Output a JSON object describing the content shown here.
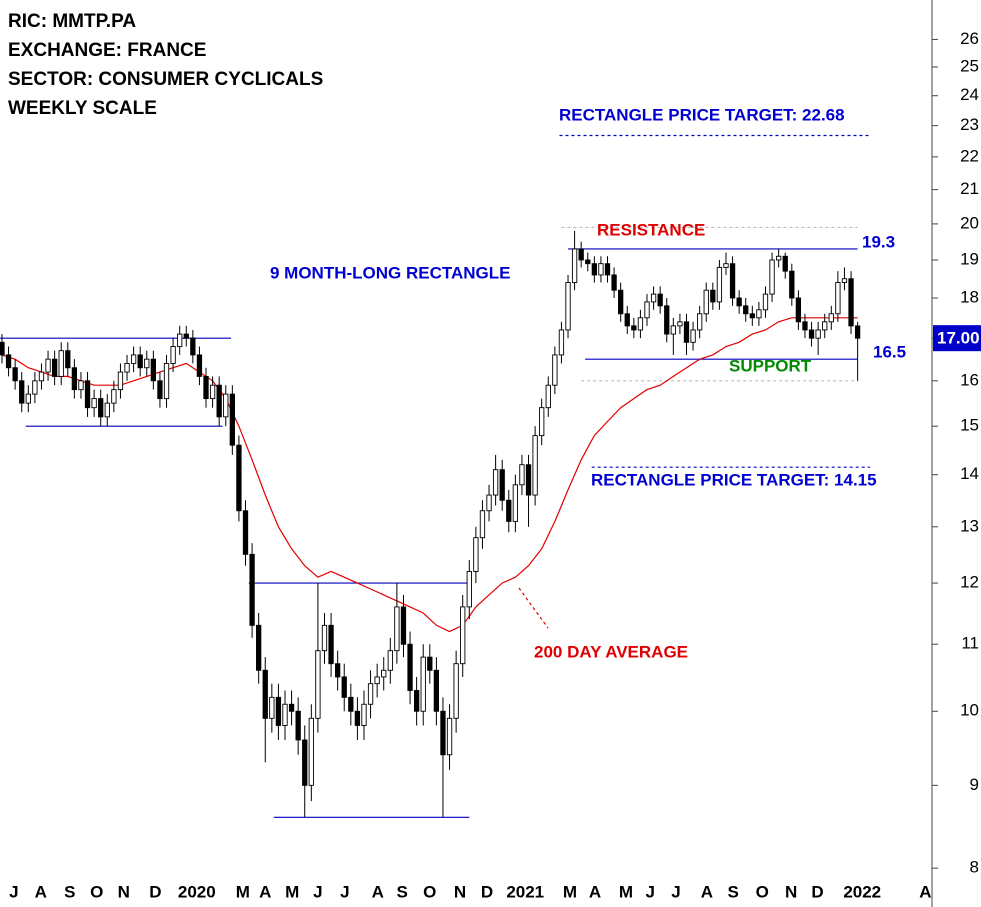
{
  "chart_data": {
    "type": "candlestick",
    "header": [
      "RIC: MMTP.PA",
      "EXCHANGE: FRANCE",
      "SECTOR: CONSUMER CYCLICALS",
      "WEEKLY SCALE"
    ],
    "annotations": {
      "rectangle": "9 MONTH-LONG RECTANGLE",
      "resistance": "RESISTANCE",
      "support": "SUPPORT",
      "target_up": "RECTANGLE PRICE TARGET: 22.68",
      "target_down": "RECTANGLE PRICE TARGET: 14.15"
    },
    "log_scale": true,
    "up_color": "#ffffff",
    "down_color": "#000000",
    "xlim": [
      -0.3,
      141.3
    ],
    "xticks": [
      {
        "value": 1.8,
        "label": "J"
      },
      {
        "value": 5.9,
        "label": "A"
      },
      {
        "value": 10.3,
        "label": "S"
      },
      {
        "value": 14.4,
        "label": "O"
      },
      {
        "value": 18.5,
        "label": "N"
      },
      {
        "value": 23.3,
        "label": "D"
      },
      {
        "value": 29.6,
        "label": "2020"
      },
      {
        "value": 36.6,
        "label": "M"
      },
      {
        "value": 40,
        "label": "A"
      },
      {
        "value": 44.1,
        "label": "M"
      },
      {
        "value": 48,
        "label": "J"
      },
      {
        "value": 52.1,
        "label": "J"
      },
      {
        "value": 57.1,
        "label": "A"
      },
      {
        "value": 60.8,
        "label": "S"
      },
      {
        "value": 65,
        "label": "O"
      },
      {
        "value": 69.6,
        "label": "N"
      },
      {
        "value": 73.7,
        "label": "D"
      },
      {
        "value": 79.5,
        "label": "2021"
      },
      {
        "value": 86.3,
        "label": "M"
      },
      {
        "value": 90.1,
        "label": "A"
      },
      {
        "value": 94.8,
        "label": "M"
      },
      {
        "value": 98.5,
        "label": "J"
      },
      {
        "value": 102.4,
        "label": "J"
      },
      {
        "value": 107.1,
        "label": "A"
      },
      {
        "value": 111.1,
        "label": "S"
      },
      {
        "value": 115.5,
        "label": "O"
      },
      {
        "value": 119.9,
        "label": "N"
      },
      {
        "value": 123.9,
        "label": "D"
      },
      {
        "value": 130.7,
        "label": "2022"
      },
      {
        "value": 140.3,
        "label": "A"
      }
    ],
    "ylim": [
      7.57,
      27.5
    ],
    "yticks": [
      8,
      9,
      10,
      11,
      12,
      13,
      14,
      15,
      16,
      17,
      18,
      19,
      20,
      21,
      22,
      23,
      24,
      25,
      26
    ],
    "last_price": {
      "value": 17,
      "label": "17.00",
      "color": "#0000c8"
    },
    "x": [
      0,
      1,
      2,
      3,
      4,
      5,
      6,
      7,
      8,
      9,
      10,
      11,
      12,
      13,
      14,
      15,
      16,
      17,
      18,
      19,
      20,
      21,
      22,
      23,
      24,
      25,
      26,
      27,
      28,
      29,
      30,
      31,
      32,
      33,
      34,
      35,
      36,
      37,
      38,
      39,
      40,
      41,
      42,
      43,
      44,
      45,
      46,
      47,
      48,
      49,
      50,
      51,
      52,
      53,
      54,
      55,
      56,
      57,
      58,
      59,
      60,
      61,
      62,
      63,
      64,
      65,
      66,
      67,
      68,
      69,
      70,
      71,
      72,
      73,
      74,
      75,
      76,
      77,
      78,
      79,
      80,
      81,
      82,
      83,
      84,
      85,
      86,
      87,
      88,
      89,
      90,
      91,
      92,
      93,
      94,
      95,
      96,
      97,
      98,
      99,
      100,
      101,
      102,
      103,
      104,
      105,
      106,
      107,
      108,
      109,
      110,
      111,
      112,
      113,
      114,
      115,
      116,
      117,
      118,
      119,
      120,
      121,
      122,
      123,
      124,
      125,
      126,
      127,
      128,
      129,
      130
    ],
    "open": [
      16.9,
      16.6,
      16.3,
      16.0,
      15.5,
      15.7,
      16.0,
      16.2,
      16.5,
      16.1,
      16.7,
      16.3,
      15.8,
      16.0,
      15.4,
      15.6,
      15.2,
      15.5,
      15.8,
      16.2,
      16.4,
      16.6,
      16.3,
      16.5,
      16.0,
      15.6,
      16.4,
      16.8,
      17.1,
      17.0,
      16.6,
      16.1,
      15.6,
      15.9,
      15.2,
      15.7,
      14.6,
      13.3,
      12.5,
      11.3,
      10.6,
      9.9,
      10.2,
      9.8,
      10.1,
      10.0,
      9.6,
      9.0,
      9.9,
      10.9,
      11.3,
      10.7,
      10.5,
      10.2,
      10.0,
      9.8,
      10.1,
      10.4,
      10.5,
      10.6,
      10.9,
      11.6,
      11.0,
      10.3,
      10.0,
      10.8,
      10.6,
      10.0,
      9.4,
      9.9,
      10.7,
      11.6,
      12.2,
      12.8,
      13.3,
      13.6,
      14.1,
      13.5,
      13.1,
      13.8,
      14.2,
      13.6,
      14.8,
      15.4,
      15.9,
      16.6,
      17.2,
      18.4,
      19.3,
      19.0,
      18.9,
      18.6,
      18.9,
      18.6,
      18.2,
      17.6,
      17.3,
      17.2,
      17.5,
      17.9,
      18.1,
      17.8,
      17.1,
      17.3,
      17.4,
      16.9,
      17.2,
      17.6,
      18.2,
      17.9,
      18.8,
      18.9,
      18.0,
      17.8,
      17.6,
      17.5,
      17.7,
      18.1,
      19.0,
      19.1,
      18.7,
      18.0,
      17.4,
      17.2,
      17.0,
      17.2,
      17.4,
      17.6,
      18.4,
      18.5,
      17.3
    ],
    "high": [
      17.1,
      16.8,
      16.5,
      16.2,
      15.9,
      16.2,
      16.4,
      16.7,
      16.7,
      16.9,
      16.9,
      16.5,
      16.2,
      16.2,
      15.8,
      15.8,
      15.7,
      16.0,
      16.4,
      16.6,
      16.8,
      16.8,
      16.7,
      16.7,
      16.2,
      16.6,
      17.0,
      17.3,
      17.3,
      17.2,
      16.8,
      16.3,
      16.1,
      16.1,
      15.9,
      15.9,
      14.8,
      13.5,
      12.7,
      11.5,
      10.8,
      10.4,
      10.4,
      10.3,
      10.3,
      10.2,
      9.8,
      10.1,
      12.0,
      11.5,
      11.5,
      10.9,
      10.7,
      10.4,
      10.2,
      10.3,
      10.6,
      10.7,
      10.8,
      11.1,
      12.0,
      11.8,
      11.2,
      10.5,
      11.0,
      11.0,
      10.8,
      10.2,
      10.1,
      10.9,
      11.8,
      12.4,
      13.0,
      13.5,
      13.8,
      14.4,
      14.3,
      13.7,
      14.0,
      14.4,
      14.4,
      15.0,
      15.6,
      16.1,
      16.8,
      17.4,
      18.6,
      19.8,
      19.5,
      19.2,
      19.1,
      19.1,
      19.1,
      18.8,
      18.4,
      17.8,
      17.5,
      17.7,
      18.1,
      18.3,
      18.3,
      18.0,
      17.5,
      17.6,
      17.6,
      17.4,
      17.8,
      18.4,
      18.4,
      19.0,
      19.2,
      19.1,
      18.2,
      18.0,
      17.8,
      17.9,
      18.3,
      19.2,
      19.3,
      19.2,
      18.9,
      18.2,
      17.6,
      17.4,
      17.4,
      17.6,
      17.8,
      18.7,
      18.8,
      18.7,
      17.4
    ],
    "low": [
      16.4,
      16.1,
      15.8,
      15.3,
      15.3,
      15.5,
      15.8,
      16.0,
      15.9,
      15.9,
      16.1,
      15.6,
      15.6,
      15.2,
      15.2,
      15.0,
      15.0,
      15.3,
      15.6,
      16.0,
      16.2,
      16.1,
      16.1,
      15.8,
      15.4,
      15.4,
      16.2,
      16.6,
      16.8,
      16.4,
      15.9,
      15.4,
      15.4,
      15.0,
      15.0,
      14.4,
      13.1,
      12.3,
      11.1,
      10.4,
      9.3,
      9.7,
      9.6,
      9.6,
      9.8,
      9.4,
      8.6,
      8.8,
      9.7,
      10.7,
      10.5,
      10.3,
      10.0,
      9.8,
      9.6,
      9.6,
      9.9,
      10.2,
      10.3,
      10.4,
      10.7,
      10.8,
      10.1,
      9.8,
      9.8,
      10.4,
      9.8,
      8.6,
      9.2,
      9.7,
      10.5,
      11.4,
      12.0,
      12.6,
      13.1,
      13.4,
      13.3,
      12.9,
      12.9,
      13.6,
      13.0,
      13.4,
      14.6,
      15.2,
      15.7,
      16.4,
      17.0,
      18.2,
      18.8,
      18.7,
      18.4,
      18.4,
      18.4,
      18.0,
      17.4,
      17.1,
      17.0,
      17.0,
      17.3,
      17.7,
      17.6,
      16.9,
      16.6,
      17.1,
      16.6,
      16.7,
      17.0,
      17.4,
      17.7,
      17.7,
      18.6,
      17.8,
      17.6,
      17.4,
      17.3,
      17.3,
      17.5,
      17.9,
      18.8,
      18.5,
      17.8,
      17.2,
      17.0,
      16.8,
      16.6,
      17.0,
      17.2,
      17.4,
      18.2,
      17.1,
      16.0
    ],
    "close": [
      16.6,
      16.3,
      16.0,
      15.5,
      15.7,
      16.0,
      16.2,
      16.5,
      16.1,
      16.7,
      16.3,
      15.8,
      16.0,
      15.4,
      15.6,
      15.2,
      15.5,
      15.8,
      16.2,
      16.4,
      16.6,
      16.3,
      16.5,
      16.0,
      15.6,
      16.4,
      16.8,
      17.1,
      17.0,
      16.6,
      16.1,
      15.6,
      15.9,
      15.2,
      15.7,
      14.6,
      13.3,
      12.5,
      11.3,
      10.6,
      9.9,
      10.2,
      9.8,
      10.1,
      10.0,
      9.6,
      9.0,
      9.9,
      10.9,
      11.3,
      10.7,
      10.5,
      10.2,
      10.0,
      9.8,
      10.1,
      10.4,
      10.5,
      10.6,
      10.9,
      11.6,
      11.0,
      10.3,
      10.0,
      10.8,
      10.6,
      10.0,
      9.4,
      9.9,
      10.7,
      11.6,
      12.2,
      12.8,
      13.3,
      13.6,
      14.1,
      13.5,
      13.1,
      13.8,
      14.2,
      13.6,
      14.8,
      15.4,
      15.9,
      16.6,
      17.2,
      18.4,
      19.3,
      19.0,
      18.9,
      18.6,
      18.9,
      18.6,
      18.2,
      17.6,
      17.3,
      17.2,
      17.5,
      17.9,
      18.1,
      17.8,
      17.1,
      17.3,
      17.4,
      16.9,
      17.2,
      17.6,
      18.2,
      17.9,
      18.8,
      18.9,
      18.0,
      17.8,
      17.6,
      17.5,
      17.7,
      18.1,
      19.0,
      19.1,
      18.7,
      18.0,
      17.4,
      17.2,
      17.0,
      17.2,
      17.4,
      17.6,
      18.4,
      18.5,
      17.3,
      17.0
    ],
    "ma": {
      "name": "200 DAY AVERAGE",
      "color": "#e00000",
      "x": [
        0,
        2,
        4,
        6,
        8,
        10,
        12,
        14,
        16,
        18,
        20,
        22,
        24,
        26,
        28,
        30,
        32,
        34,
        36,
        38,
        40,
        42,
        44,
        46,
        48,
        50,
        52,
        54,
        56,
        58,
        60,
        62,
        64,
        66,
        68,
        70,
        72,
        74,
        76,
        78,
        80,
        82,
        84,
        86,
        88,
        90,
        92,
        94,
        96,
        98,
        100,
        102,
        104,
        106,
        108,
        110,
        112,
        114,
        116,
        118,
        120,
        122,
        124,
        126,
        128,
        130
      ],
      "values": [
        16.6,
        16.5,
        16.3,
        16.2,
        16.1,
        16.1,
        16.0,
        15.9,
        15.9,
        15.9,
        16.0,
        16.1,
        16.2,
        16.3,
        16.4,
        16.2,
        16.0,
        15.6,
        15.0,
        14.3,
        13.6,
        13.0,
        12.6,
        12.3,
        12.1,
        12.2,
        12.1,
        12.0,
        11.9,
        11.8,
        11.7,
        11.6,
        11.5,
        11.3,
        11.2,
        11.3,
        11.6,
        11.8,
        12.0,
        12.1,
        12.3,
        12.6,
        13.1,
        13.7,
        14.3,
        14.8,
        15.1,
        15.4,
        15.6,
        15.8,
        15.9,
        16.1,
        16.3,
        16.5,
        16.6,
        16.8,
        16.9,
        17.1,
        17.2,
        17.4,
        17.5,
        17.5,
        17.5,
        17.5,
        17.5,
        17.5
      ]
    },
    "levels": [
      {
        "value": 17,
        "x": [
          -0.3,
          34.8
        ],
        "color": "#0000c0",
        "style": "solid"
      },
      {
        "value": 15,
        "x": [
          3.6,
          33.5
        ],
        "color": "#0000c0",
        "style": "solid"
      },
      {
        "value": 12,
        "x": [
          37.5,
          71
        ],
        "color": "#0000c0",
        "style": "solid"
      },
      {
        "value": 8.6,
        "x": [
          41.3,
          71
        ],
        "color": "#0000c0",
        "style": "solid"
      },
      {
        "value": 19.3,
        "x": [
          86,
          130
        ],
        "color": "#0000c0",
        "style": "solid"
      },
      {
        "value": 16.5,
        "x": [
          88.6,
          130
        ],
        "color": "#0000c0",
        "style": "solid"
      },
      {
        "value": 22.68,
        "x": [
          84.7,
          131.9
        ],
        "color": "#0000c0",
        "style": "dashed"
      },
      {
        "value": 19.9,
        "x": [
          85,
          130
        ],
        "color": "#bbbbbb",
        "style": "dashed"
      },
      {
        "value": 16,
        "x": [
          88,
          130
        ],
        "color": "#bbbbbb",
        "style": "dashed"
      },
      {
        "value": 14.15,
        "x": [
          89.6,
          131.9
        ],
        "color": "#0000c0",
        "style": "dashed"
      }
    ]
  }
}
